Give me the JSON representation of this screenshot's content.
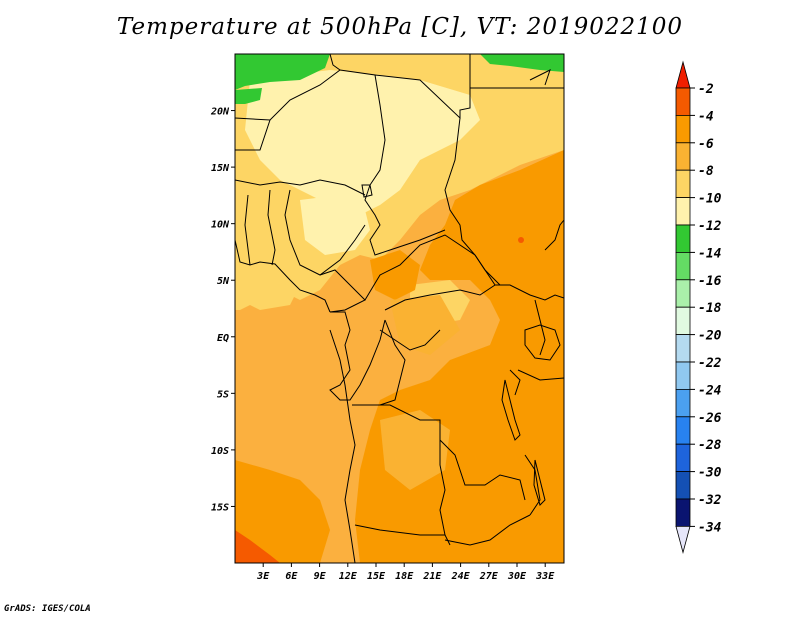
{
  "title": "Temperature at 500hPa [C], VT: 2019022100",
  "credit": "GrADS: IGES/COLA",
  "axes": {
    "x_ticks": [
      {
        "lon": 3,
        "label": "3E"
      },
      {
        "lon": 6,
        "label": "6E"
      },
      {
        "lon": 9,
        "label": "9E"
      },
      {
        "lon": 12,
        "label": "12E"
      },
      {
        "lon": 15,
        "label": "15E"
      },
      {
        "lon": 18,
        "label": "18E"
      },
      {
        "lon": 21,
        "label": "21E"
      },
      {
        "lon": 24,
        "label": "24E"
      },
      {
        "lon": 27,
        "label": "27E"
      },
      {
        "lon": 30,
        "label": "30E"
      },
      {
        "lon": 33,
        "label": "33E"
      }
    ],
    "y_ticks": [
      {
        "lat": 20,
        "label": "20N"
      },
      {
        "lat": 15,
        "label": "15N"
      },
      {
        "lat": 10,
        "label": "10N"
      },
      {
        "lat": 5,
        "label": "5N"
      },
      {
        "lat": 0,
        "label": "EQ"
      },
      {
        "lat": -5,
        "label": "5S"
      },
      {
        "lat": -10,
        "label": "10S"
      },
      {
        "lat": -15,
        "label": "15S"
      }
    ],
    "lon_range": [
      0,
      35
    ],
    "lat_range": [
      -20,
      25
    ]
  },
  "colorbar": {
    "levels": [
      "-2",
      "-4",
      "-6",
      "-8",
      "-10",
      "-12",
      "-14",
      "-16",
      "-18",
      "-20",
      "-22",
      "-24",
      "-26",
      "-28",
      "-30",
      "-32",
      "-34"
    ],
    "colors": [
      "#f01e00",
      "#f55a00",
      "#f99a00",
      "#fab232",
      "#fdd564",
      "#fff2ad",
      "#32c832",
      "#64dc64",
      "#aaf0aa",
      "#e1fae1",
      "#b4daf0",
      "#90c8f0",
      "#4ba0f0",
      "#2882f0",
      "#1e64dc",
      "#1450b4",
      "#0a1470",
      "#e6e6fa"
    ]
  },
  "map": {
    "background": "#fbb03f",
    "colors": {
      "t_minus_6": "#f99a00",
      "t_minus_8": "#fab232",
      "t_minus_10": "#fdd564",
      "t_minus_12": "#fff2ad",
      "t_minus_14": "#32c832",
      "t_minus_4": "#f55a00"
    }
  }
}
